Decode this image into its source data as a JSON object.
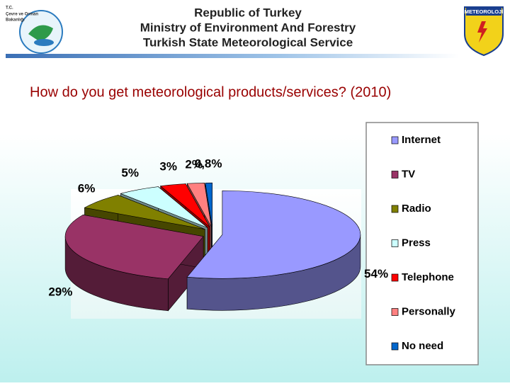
{
  "header": {
    "lines": [
      "Republic of Turkey",
      "Ministry of Environment And Forestry",
      "Turkish State Meteorological Service"
    ],
    "left_logo": [
      "T.C.",
      "Çevre ve Orman",
      "Bakanlığı"
    ],
    "right_logo": "METEOROLOJİ"
  },
  "chart_data": {
    "type": "pie",
    "title": "How do you get meteorological products/services?  (2010)",
    "categories": [
      "Internet",
      "TV",
      "Radio",
      "Press",
      "Telephone",
      "Personally",
      "No need"
    ],
    "values": [
      54,
      29,
      6,
      5,
      3,
      2,
      0.8
    ],
    "value_labels": [
      "54%",
      "29%",
      "6%",
      "5%",
      "3%",
      "2%",
      "0,8%"
    ],
    "colors": [
      "#9999ff",
      "#993366",
      "#808000",
      "#ccffff",
      "#ff0000",
      "#ff8080",
      "#0066cc"
    ],
    "legend": "right",
    "three_d": true,
    "exploded": true
  }
}
